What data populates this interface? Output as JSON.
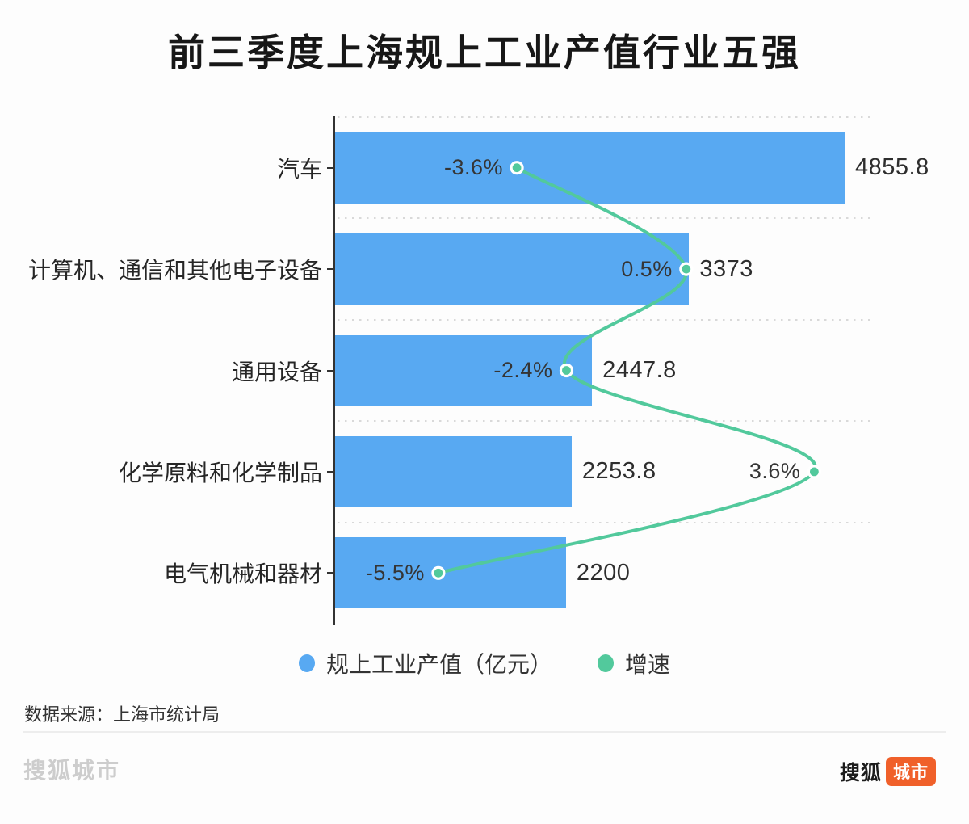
{
  "title": "前三季度上海规上工业产值行业五强",
  "colors": {
    "bar_blue": "#58A9F2",
    "line_green": "#52C99C",
    "badge_orange": "#F0602A",
    "axis": "#333333",
    "grid_dot": "#d9d9d9"
  },
  "legend": {
    "items": [
      {
        "label": "规上工业产值（亿元）",
        "marker_color": "#58A9F2"
      },
      {
        "label": "增速",
        "marker_color": "#52C99C"
      }
    ]
  },
  "footer": {
    "source": "数据来源：上海市统计局",
    "watermark": "搜狐城市",
    "logo": {
      "brand": "搜狐",
      "badge": "城市"
    }
  },
  "chart_data": {
    "type": "bar",
    "orientation": "horizontal",
    "title": "前三季度上海规上工业产值行业五强",
    "categories": [
      "汽车",
      "计算机、通信和其他电子设备",
      "通用设备",
      "化学原料和化学制品",
      "电气机械和器材"
    ],
    "series": [
      {
        "name": "规上工业产值（亿元）",
        "type": "bar",
        "unit": "亿元",
        "values": [
          4855.8,
          3373,
          2447.8,
          2253.8,
          2200
        ],
        "data_labels": [
          "4855.8",
          "3373",
          "2447.8",
          "2253.8",
          "2200"
        ],
        "color": "#58A9F2"
      },
      {
        "name": "增速",
        "type": "line",
        "unit": "%",
        "smooth": true,
        "values": [
          -3.6,
          0.5,
          -2.4,
          3.6,
          -5.5
        ],
        "data_labels": [
          "-3.6%",
          "0.5%",
          "-2.4%",
          "3.6%",
          "-5.5%"
        ],
        "color": "#52C99C",
        "point_style": "green dot with white ring"
      }
    ],
    "value_axis": {
      "min": 0,
      "max_estimated": 5120,
      "visible": false
    },
    "secondary_axis": {
      "min": -8,
      "max": 5,
      "visible": false
    },
    "gridlines": "dotted horizontal separators between category bands",
    "legend_position": "bottom"
  }
}
